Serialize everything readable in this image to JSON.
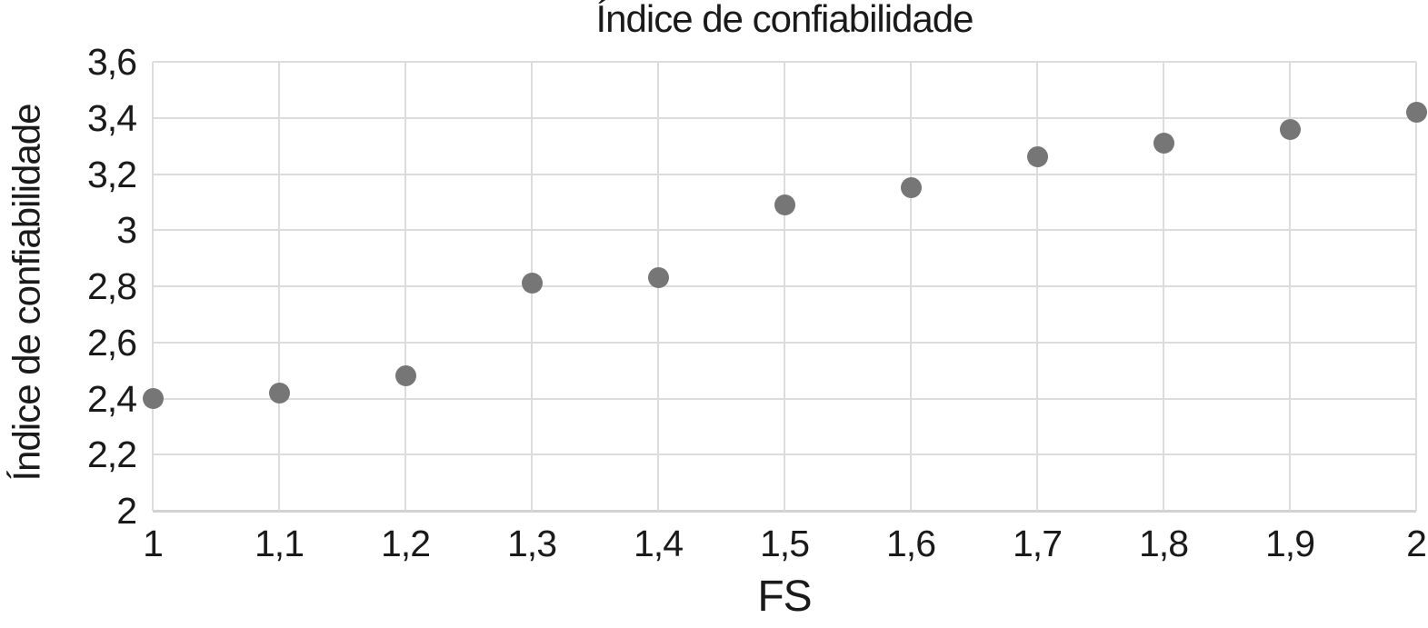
{
  "colors": {
    "text": "#1a1a1a",
    "grid": "#dcdcdc",
    "axis": "#d2d2d2",
    "point": "#767676",
    "background": "#ffffff"
  },
  "chart_data": {
    "type": "scatter",
    "title": "Índice de confiabilidade",
    "xlabel": "FS",
    "ylabel": "Índice de confiabilidade",
    "xlim": [
      1,
      2
    ],
    "ylim": [
      2,
      3.6
    ],
    "grid": true,
    "legend": false,
    "decimal_separator": ",",
    "x_ticks": [
      {
        "v": 1,
        "label": "1"
      },
      {
        "v": 1.1,
        "label": "1,1"
      },
      {
        "v": 1.2,
        "label": "1,2"
      },
      {
        "v": 1.3,
        "label": "1,3"
      },
      {
        "v": 1.4,
        "label": "1,4"
      },
      {
        "v": 1.5,
        "label": "1,5"
      },
      {
        "v": 1.6,
        "label": "1,6"
      },
      {
        "v": 1.7,
        "label": "1,7"
      },
      {
        "v": 1.8,
        "label": "1,8"
      },
      {
        "v": 1.9,
        "label": "1,9"
      },
      {
        "v": 2,
        "label": "2"
      }
    ],
    "y_ticks": [
      {
        "v": 2,
        "label": "2"
      },
      {
        "v": 2.2,
        "label": "2,2"
      },
      {
        "v": 2.4,
        "label": "2,4"
      },
      {
        "v": 2.6,
        "label": "2,6"
      },
      {
        "v": 2.8,
        "label": "2,8"
      },
      {
        "v": 3,
        "label": "3"
      },
      {
        "v": 3.2,
        "label": "3,2"
      },
      {
        "v": 3.4,
        "label": "3,4"
      },
      {
        "v": 3.6,
        "label": "3,6"
      }
    ],
    "points": [
      {
        "x": 1.0,
        "y": 2.4
      },
      {
        "x": 1.1,
        "y": 2.42
      },
      {
        "x": 1.2,
        "y": 2.48
      },
      {
        "x": 1.3,
        "y": 2.81
      },
      {
        "x": 1.4,
        "y": 2.83
      },
      {
        "x": 1.5,
        "y": 3.09
      },
      {
        "x": 1.6,
        "y": 3.15
      },
      {
        "x": 1.7,
        "y": 3.26
      },
      {
        "x": 1.8,
        "y": 3.31
      },
      {
        "x": 1.9,
        "y": 3.36
      },
      {
        "x": 2.0,
        "y": 3.42
      }
    ]
  }
}
